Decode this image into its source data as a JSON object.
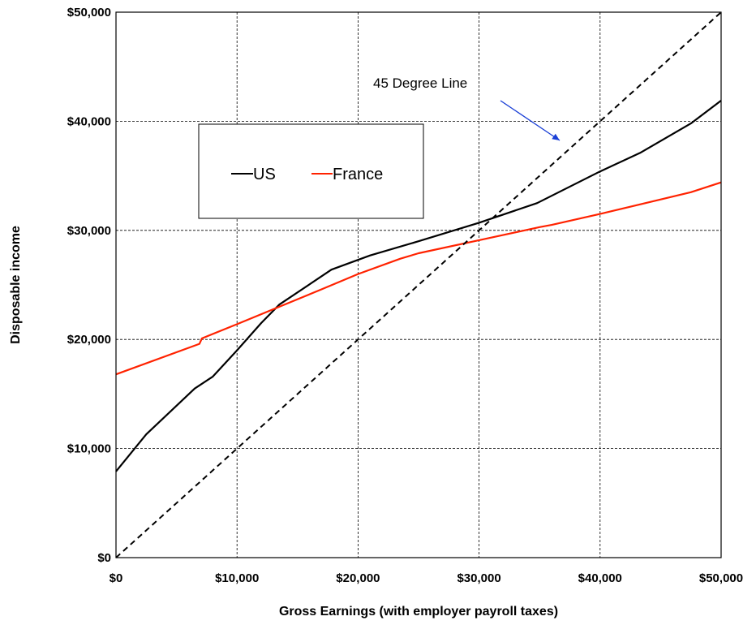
{
  "chart_data": {
    "type": "line",
    "xlabel": "Gross Earnings (with employer payroll taxes)",
    "ylabel": "Disposable income",
    "xlim": [
      0,
      50000
    ],
    "ylim": [
      0,
      50000
    ],
    "x_ticks": [
      0,
      10000,
      20000,
      30000,
      40000,
      50000
    ],
    "x_tick_labels": [
      "$0",
      "$10,000",
      "$20,000",
      "$30,000",
      "$40,000",
      "$50,000"
    ],
    "y_ticks": [
      0,
      10000,
      20000,
      30000,
      40000,
      50000
    ],
    "y_tick_labels": [
      "$0",
      "$10,000",
      "$20,000",
      "$30,000",
      "$40,000",
      "$50,000"
    ],
    "grid": true,
    "legend_position": "upper-left",
    "series": [
      {
        "name": "US",
        "color": "#000000",
        "style": "solid",
        "points": [
          [
            0,
            7900
          ],
          [
            2500,
            11300
          ],
          [
            6500,
            15500
          ],
          [
            8000,
            16600
          ],
          [
            10000,
            19000
          ],
          [
            12000,
            21500
          ],
          [
            13500,
            23200
          ],
          [
            17800,
            26400
          ],
          [
            21000,
            27700
          ],
          [
            25000,
            29000
          ],
          [
            30000,
            30700
          ],
          [
            34800,
            32500
          ],
          [
            40000,
            35400
          ],
          [
            43300,
            37100
          ],
          [
            47500,
            39800
          ],
          [
            50000,
            41900
          ]
        ]
      },
      {
        "name": "France",
        "color": "#ff2200",
        "style": "solid",
        "points": [
          [
            0,
            16800
          ],
          [
            6900,
            19600
          ],
          [
            7100,
            20100
          ],
          [
            10000,
            21400
          ],
          [
            13500,
            23000
          ],
          [
            17000,
            24600
          ],
          [
            20000,
            26000
          ],
          [
            23500,
            27400
          ],
          [
            25000,
            27900
          ],
          [
            30000,
            29100
          ],
          [
            35000,
            30300
          ],
          [
            36000,
            30500
          ],
          [
            40000,
            31500
          ],
          [
            47500,
            33500
          ],
          [
            50000,
            34400
          ]
        ]
      },
      {
        "color": "#000000",
        "style": "dashed",
        "points": [
          [
            0,
            0
          ],
          [
            50000,
            50000
          ]
        ]
      }
    ],
    "annotations": [
      {
        "text": "45 Degree Line",
        "arrow_color": "#1a3fd6"
      }
    ]
  }
}
